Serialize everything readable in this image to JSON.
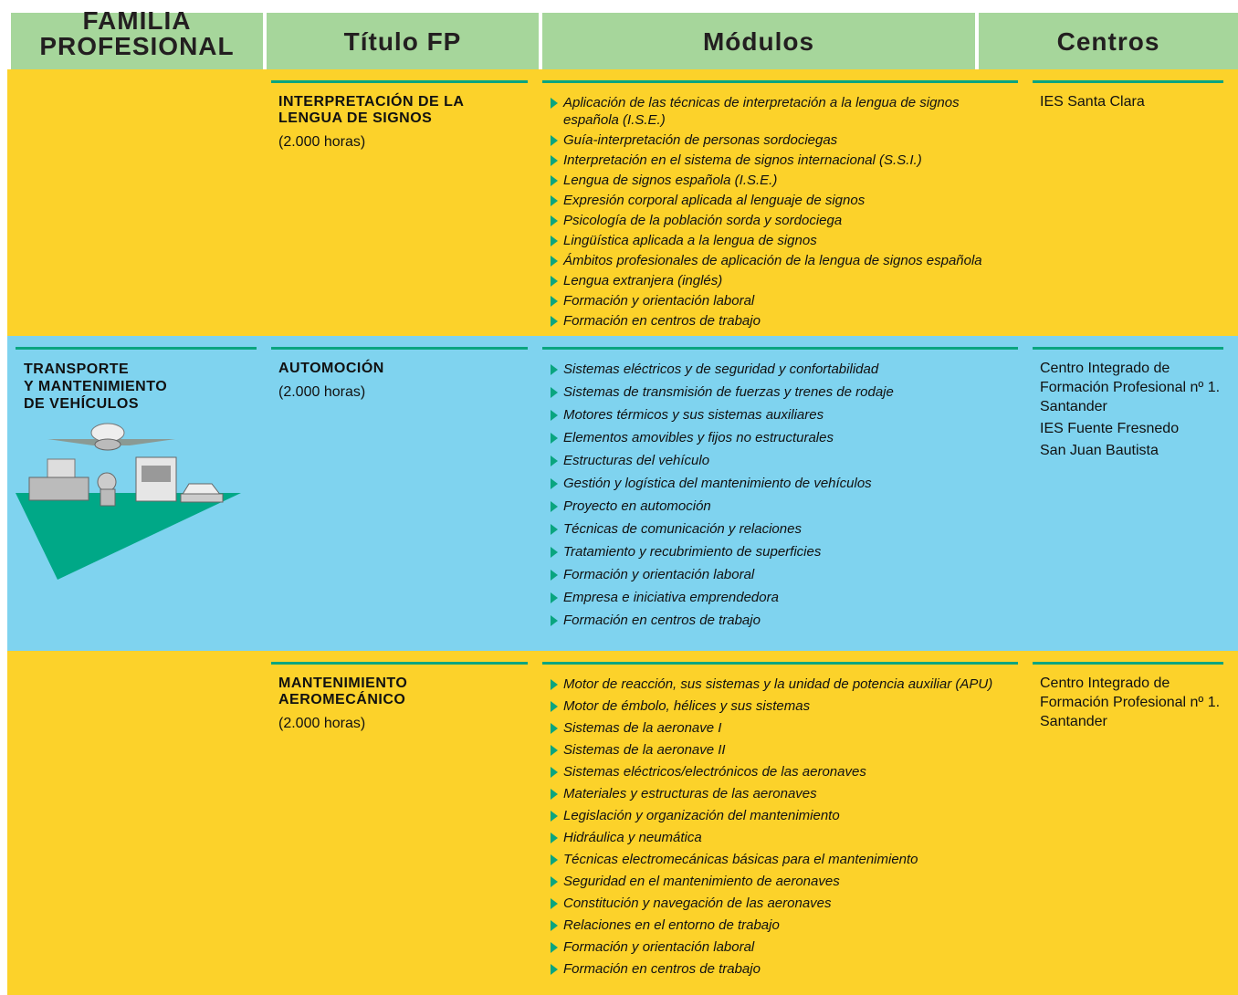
{
  "header": {
    "columns": [
      [
        "FAMILIA",
        "PROFESIONAL"
      ],
      "Título FP",
      "Módulos",
      "Centros"
    ]
  },
  "rows": [
    {
      "titulo": {
        "name": [
          "INTERPRETACIÓN DE LA",
          "LENGUA DE SIGNOS"
        ],
        "hours": "(2.000 horas)"
      },
      "modulos": [
        "Aplicación de las técnicas de interpretación a la lengua de signos española (I.S.E.)",
        "Guía-interpretación de personas sordociegas",
        "Interpretación en el sistema de signos internacional (S.S.I.)",
        "Lengua de signos española (I.S.E.)",
        "Expresión corporal aplicada al lenguaje de signos",
        "Psicología de la población sorda y sordociega",
        "Lingüística aplicada a la lengua de signos",
        "Ámbitos profesionales de aplicación de la lengua de signos española",
        "Lengua extranjera (inglés)",
        "Formación y orientación laboral",
        "Formación en centros de trabajo"
      ],
      "centros": [
        "IES Santa Clara"
      ]
    },
    {
      "familia": [
        "TRANSPORTE",
        "Y MANTENIMIENTO",
        "DE VEHÍCULOS"
      ],
      "titulo": {
        "name": [
          "AUTOMOCIÓN"
        ],
        "hours": "(2.000 horas)"
      },
      "modulos": [
        "Sistemas eléctricos y de seguridad y confortabilidad",
        "Sistemas de transmisión de fuerzas y trenes de rodaje",
        "Motores térmicos y sus sistemas auxiliares",
        "Elementos amovibles y fijos no estructurales",
        "Estructuras del vehículo",
        "Gestión y logística del mantenimiento de vehículos",
        "Proyecto en automoción",
        "Técnicas de comunicación y relaciones",
        "Tratamiento y recubrimiento de superficies",
        "Formación y orientación laboral",
        "Empresa e iniciativa emprendedora",
        "Formación en centros de trabajo"
      ],
      "centros": [
        "Centro Integrado de Formación Profesional nº 1. Santander",
        "IES Fuente Fresnedo",
        "San Juan Bautista"
      ]
    },
    {
      "titulo": {
        "name": [
          "MANTENIMIENTO",
          "AEROMECÁNICO"
        ],
        "hours": "(2.000 horas)"
      },
      "modulos": [
        "Motor de reacción, sus sistemas y la unidad de potencia auxiliar (APU)",
        "Motor de émbolo, hélices y sus sistemas",
        "Sistemas de la aeronave I",
        "Sistemas de la aeronave II",
        "Sistemas eléctricos/electrónicos de las aeronaves",
        "Materiales y estructuras de las aeronaves",
        "Legislación y organización del mantenimiento",
        "Hidráulica y neumática",
        "Técnicas electromecánicas básicas para el mantenimiento",
        "Seguridad en el mantenimiento de aeronaves",
        "Constitución y navegación de las aeronaves",
        "Relaciones en el entorno de trabajo",
        "Formación y orientación laboral",
        "Formación en centros de trabajo"
      ],
      "centros": [
        "Centro Integrado de Formación Profesional nº 1. Santander"
      ]
    }
  ]
}
